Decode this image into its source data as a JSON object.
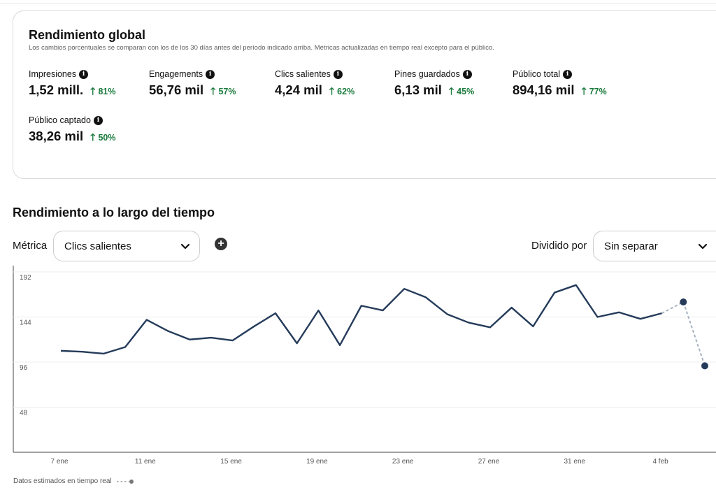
{
  "overview": {
    "title": "Rendimiento global",
    "subtitle": "Los cambios porcentuales se comparan con los de los 30 días antes del período indicado arriba. Métricas actualizadas en tiempo real excepto para el público.",
    "metrics": [
      {
        "label": "Impresiones",
        "value": "1,52 mill.",
        "change": "81%"
      },
      {
        "label": "Engagements",
        "value": "56,76 mil",
        "change": "57%"
      },
      {
        "label": "Clics salientes",
        "value": "4,24 mil",
        "change": "62%"
      },
      {
        "label": "Pines guardados",
        "value": "6,13 mil",
        "change": "45%"
      },
      {
        "label": "Público total",
        "value": "894,16 mil",
        "change": "77%"
      },
      {
        "label": "Público captado",
        "value": "38,26 mil",
        "change": "50%"
      }
    ],
    "info_icon": "i",
    "change_icon": "arrow-up-icon",
    "change_color": "#1a7a3c"
  },
  "over_time": {
    "title": "Rendimiento a lo largo del tiempo",
    "metric_label": "Métrica",
    "metric_select_value": "Clics salientes",
    "add_icon": "plus-icon",
    "split_label": "Dividido por",
    "split_select_value": "Sin separar",
    "legend_label": "Datos estimados en tiempo real"
  },
  "chart_data": {
    "type": "line",
    "y_ticks": [
      "192",
      "144",
      "96",
      "48"
    ],
    "x_tick_labels": [
      "7 ene",
      "11 ene",
      "15 ene",
      "19 ene",
      "23 ene",
      "27 ene",
      "31 ene",
      "4 feb"
    ],
    "ylim": [
      0,
      192
    ],
    "series": [
      {
        "values": [
          108,
          107,
          105,
          112,
          141,
          129,
          120,
          122,
          119,
          134,
          148,
          116,
          151,
          114,
          156,
          151,
          174,
          165,
          147,
          138,
          133,
          154,
          134,
          170,
          178,
          144,
          149,
          142,
          148
        ]
      },
      {
        "values": [
          148,
          160,
          92
        ],
        "offset": 28
      }
    ],
    "line_color": "#253b5a",
    "estimate_color": "#a9b4c2",
    "grid": true
  }
}
